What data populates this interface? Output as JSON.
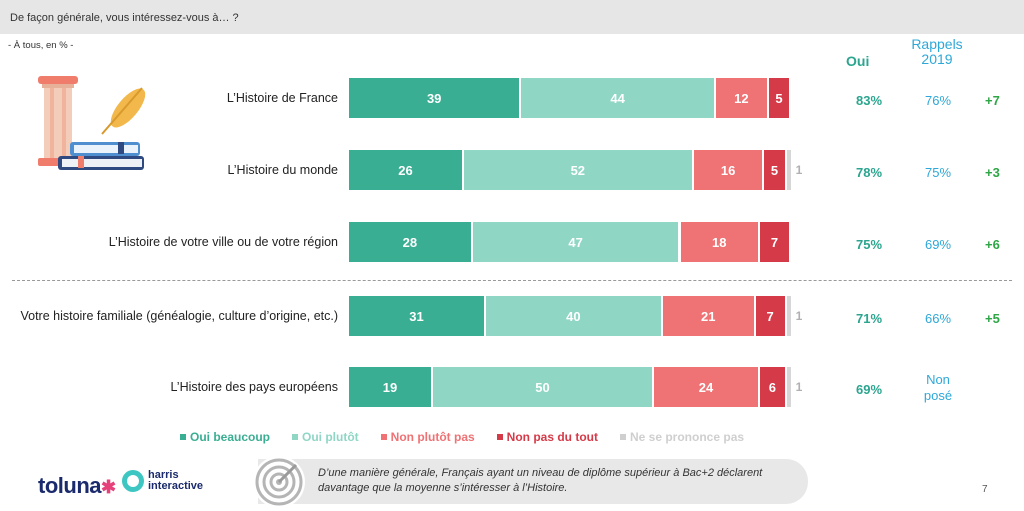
{
  "question": "De façon générale, vous intéressez-vous à… ?",
  "base": "- À tous, en % -",
  "columns": {
    "oui": "Oui",
    "rappels": "Rappels 2019"
  },
  "colors": {
    "oui_beaucoup": "#3aae93",
    "oui_plutot": "#8fd6c5",
    "non_plutot_pas": "#ef7275",
    "non_pas_du_tout": "#d53a48",
    "nsp": "#d6d6d6",
    "oui_text": "#2ba58f",
    "rappel_text": "#2ea8d8",
    "diff_text": "#2ea646"
  },
  "chart_data": {
    "type": "bar",
    "stacked": true,
    "orientation": "horizontal",
    "categories": [
      "L’Histoire de France",
      "L’Histoire du monde",
      "L’Histoire de votre ville ou de votre région",
      "Votre histoire familiale (généalogie, culture d’origine, etc.)",
      "L’Histoire des pays européens"
    ],
    "series": [
      {
        "name": "Oui beaucoup",
        "values": [
          39,
          26,
          28,
          31,
          19
        ]
      },
      {
        "name": "Oui plutôt",
        "values": [
          44,
          52,
          47,
          40,
          50
        ]
      },
      {
        "name": "Non plutôt pas",
        "values": [
          12,
          16,
          18,
          21,
          24
        ]
      },
      {
        "name": "Non pas du tout",
        "values": [
          5,
          5,
          7,
          7,
          6
        ]
      },
      {
        "name": "Ne se prononce pas",
        "values": [
          null,
          1,
          null,
          1,
          1
        ]
      }
    ],
    "oui_totals": [
      "83%",
      "78%",
      "75%",
      "71%",
      "69%"
    ],
    "rappels_2019": [
      "76%",
      "75%",
      "69%",
      "66%",
      "Non posé"
    ],
    "evolutions": [
      "+7",
      "+3",
      "+6",
      "+5",
      ""
    ],
    "legend_position": "bottom"
  },
  "legend": [
    {
      "label": "Oui beaucoup",
      "color": "#3aae93"
    },
    {
      "label": "Oui plutôt",
      "color": "#8fd6c5"
    },
    {
      "label": "Non plutôt pas",
      "color": "#ef7275"
    },
    {
      "label": "Non pas du tout",
      "color": "#d53a48"
    },
    {
      "label": "Ne se prononce pas",
      "color": "#cfcfcf"
    }
  ],
  "footer": {
    "toluna": "toluna",
    "harris_line1": "harris",
    "harris_line2": "interactive",
    "note": "D’une manière générale, Français ayant un niveau de diplôme supérieur à Bac+2 déclarent davantage que la moyenne s’intéresser à l’Histoire.",
    "page_number": "7"
  }
}
